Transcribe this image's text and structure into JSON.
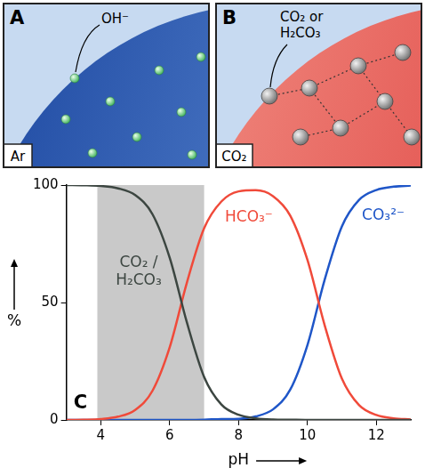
{
  "panels": [
    {
      "letter": "A",
      "gas": "Ar",
      "label": "OH⁻"
    },
    {
      "letter": "B",
      "gas": "CO₂",
      "label": [
        "CO₂ or",
        "H₂CO₃"
      ]
    }
  ],
  "chart_data": {
    "type": "line",
    "letter": "C",
    "x_label": "pH",
    "y_label": "%",
    "x": [
      3,
      3.5,
      4,
      4.5,
      5,
      5.5,
      6,
      6.5,
      7,
      7.5,
      8,
      8.5,
      9,
      9.5,
      10,
      10.5,
      11,
      11.5,
      12,
      12.5,
      13
    ],
    "series": [
      {
        "name": "CO₂ / H₂CO₃",
        "color": "#3c4641",
        "values": [
          100,
          99.9,
          99.6,
          98.6,
          95.7,
          87.6,
          69.1,
          41.5,
          18.3,
          6.6,
          2.2,
          0.7,
          0.2,
          0.1,
          0,
          0,
          0,
          0,
          0,
          0,
          0
        ]
      },
      {
        "name": "HCO₃⁻",
        "color": "#f04a3a",
        "values": [
          0,
          0.1,
          0.4,
          1.4,
          4.3,
          12.4,
          30.9,
          58.5,
          81.6,
          93.0,
          97.3,
          97.8,
          95.3,
          87.0,
          68.1,
          40.3,
          17.6,
          6.3,
          2.1,
          0.7,
          0.2
        ]
      },
      {
        "name": "CO₃²⁻",
        "color": "#1f56c8",
        "values": [
          0,
          0,
          0,
          0,
          0,
          0,
          0,
          0,
          0.1,
          0.4,
          0.5,
          1.5,
          4.5,
          12.9,
          31.9,
          59.7,
          82.4,
          93.7,
          97.9,
          99.3,
          99.8
        ]
      }
    ],
    "shaded_x": [
      3.9,
      7
    ],
    "xlim": [
      3,
      13
    ],
    "xticks": [
      4,
      6,
      8,
      10,
      12
    ],
    "ylim": [
      0,
      100
    ],
    "yticks": [
      0,
      50,
      100
    ],
    "grid": false
  }
}
